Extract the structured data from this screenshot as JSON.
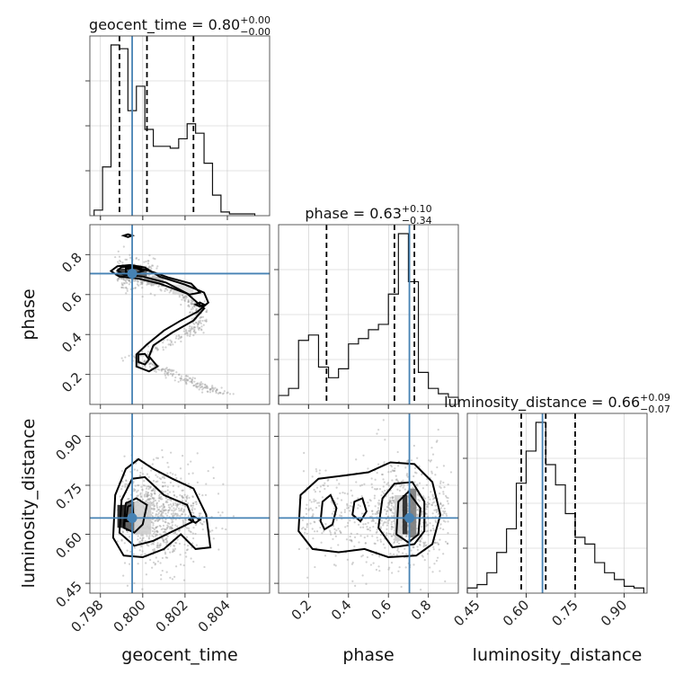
{
  "chart_data": {
    "type": "corner",
    "parameters": [
      "geocent_time",
      "phase",
      "luminosity_distance"
    ],
    "truth": {
      "geocent_time": 0.7995,
      "phase": 0.705,
      "luminosity_distance": 0.65
    },
    "titles": [
      {
        "param": "geocent_time",
        "text": "geocent_time = 0.80",
        "plus": "+0.00",
        "minus": "−0.00"
      },
      {
        "param": "phase",
        "text": "phase = 0.63",
        "plus": "+0.10",
        "minus": "−0.34"
      },
      {
        "param": "luminosity_distance",
        "text": "luminosity_distance = 0.66",
        "plus": "+0.09",
        "minus": "−0.07"
      }
    ],
    "axes": {
      "geocent_time": {
        "range": [
          0.7975,
          0.806
        ],
        "ticks": [
          0.798,
          0.8,
          0.802,
          0.804
        ],
        "tick_labels": [
          "0.798",
          "0.800",
          "0.802",
          "0.804"
        ]
      },
      "phase": {
        "range": [
          0.05,
          0.95
        ],
        "ticks": [
          0.2,
          0.4,
          0.6,
          0.8
        ],
        "tick_labels": [
          "0.2",
          "0.4",
          "0.6",
          "0.8"
        ]
      },
      "luminosity_distance": {
        "range": [
          0.42,
          0.97
        ],
        "ticks": [
          0.45,
          0.6,
          0.75,
          0.9
        ],
        "tick_labels": [
          "0.45",
          "0.60",
          "0.75",
          "0.90"
        ]
      }
    },
    "marginals": {
      "geocent_time": {
        "bin_edges": [
          0.7977,
          0.7981,
          0.7985,
          0.7989,
          0.7993,
          0.7997,
          0.8001,
          0.8005,
          0.8009,
          0.8013,
          0.8017,
          0.8021,
          0.8025,
          0.8029,
          0.8033,
          0.8037,
          0.8041,
          0.8045,
          0.8049,
          0.8053
        ],
        "counts": [
          0.02,
          0.25,
          0.9,
          0.88,
          0.55,
          0.68,
          0.45,
          0.36,
          0.36,
          0.35,
          0.4,
          0.48,
          0.43,
          0.27,
          0.1,
          0.01,
          0.0,
          0.0,
          0.0
        ],
        "quantiles": [
          0.7989,
          0.8002,
          0.8024
        ]
      },
      "phase": {
        "bin_edges": [
          0.05,
          0.1,
          0.15,
          0.2,
          0.25,
          0.3,
          0.35,
          0.4,
          0.45,
          0.5,
          0.55,
          0.6,
          0.65,
          0.7,
          0.75,
          0.8,
          0.85,
          0.9,
          0.95
        ],
        "counts": [
          0.04,
          0.08,
          0.35,
          0.38,
          0.2,
          0.14,
          0.19,
          0.33,
          0.36,
          0.41,
          0.44,
          0.61,
          0.95,
          0.68,
          0.17,
          0.08,
          0.05,
          0.03
        ],
        "quantiles": [
          0.29,
          0.63,
          0.73
        ]
      },
      "luminosity_distance": {
        "bin_edges": [
          0.42,
          0.45,
          0.48,
          0.51,
          0.54,
          0.57,
          0.6,
          0.63,
          0.66,
          0.69,
          0.72,
          0.75,
          0.78,
          0.81,
          0.84,
          0.87,
          0.9,
          0.93,
          0.96
        ],
        "counts": [
          0.02,
          0.04,
          0.11,
          0.23,
          0.37,
          0.64,
          0.83,
          1.0,
          0.75,
          0.63,
          0.46,
          0.32,
          0.28,
          0.17,
          0.11,
          0.07,
          0.03,
          0.02
        ],
        "quantiles": [
          0.585,
          0.66,
          0.75
        ]
      }
    },
    "grid": true,
    "legend": "none"
  }
}
